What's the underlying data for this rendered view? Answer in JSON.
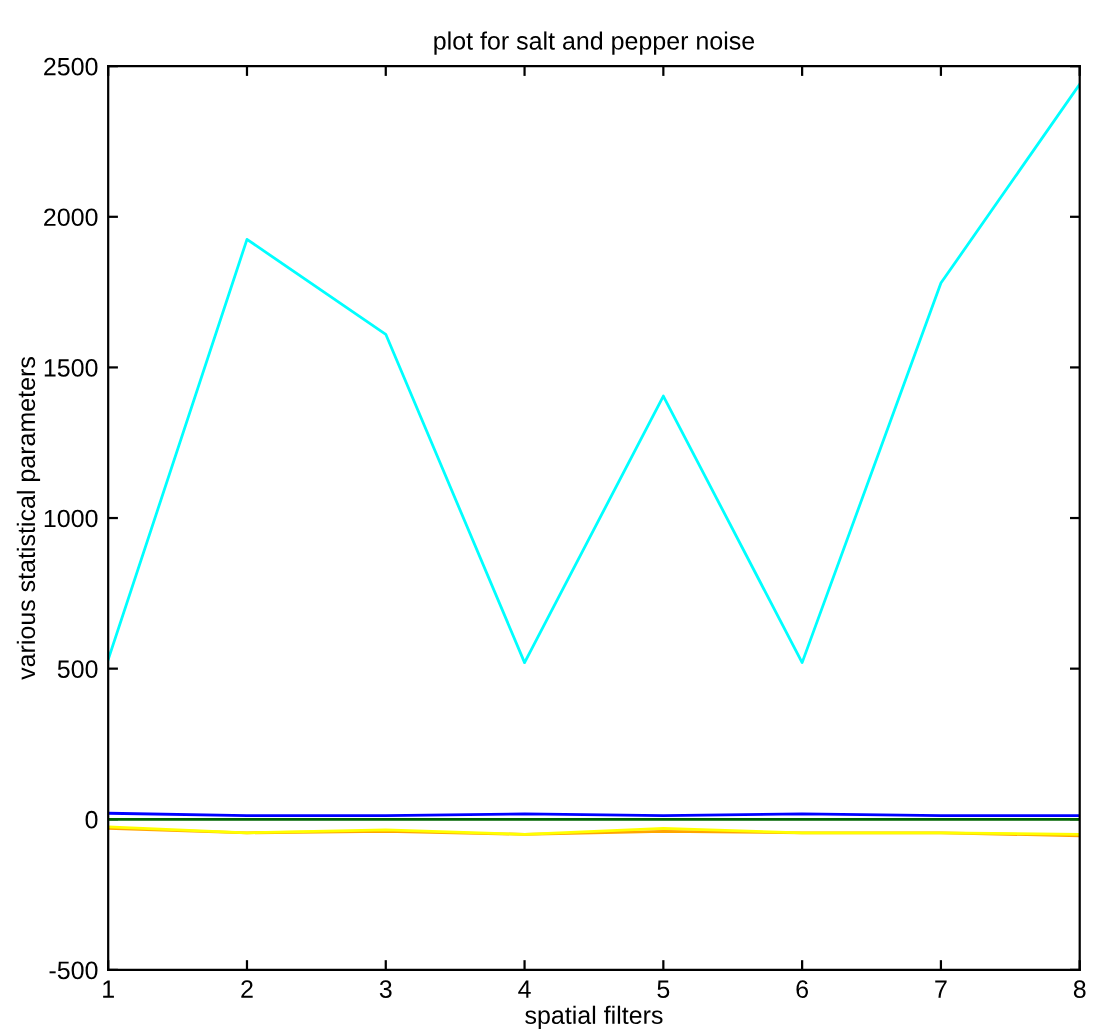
{
  "chart_data": {
    "type": "line",
    "title": "plot for salt and pepper noise",
    "xlabel": "spatial filters",
    "ylabel": "various statistical parameters",
    "x": [
      1,
      2,
      3,
      4,
      5,
      6,
      7,
      8
    ],
    "series": [
      {
        "color": "#00ffff",
        "values": [
          530,
          1925,
          1610,
          520,
          1405,
          520,
          1780,
          2440
        ]
      },
      {
        "color": "#0000ff",
        "values": [
          20,
          12,
          12,
          18,
          12,
          18,
          12,
          12
        ]
      },
      {
        "color": "#006400",
        "values": [
          0,
          0,
          0,
          0,
          0,
          0,
          0,
          0
        ]
      },
      {
        "color": "#ffa500",
        "values": [
          -30,
          -45,
          -40,
          -50,
          -40,
          -45,
          -45,
          -55
        ]
      },
      {
        "color": "#ffff00",
        "values": [
          -25,
          -45,
          -35,
          -50,
          -30,
          -45,
          -45,
          -50
        ]
      }
    ],
    "xlim": [
      1,
      8
    ],
    "xticks": [
      1,
      2,
      3,
      4,
      5,
      6,
      7,
      8
    ],
    "ylim": [
      -500,
      2500
    ],
    "yticks": [
      -500,
      0,
      500,
      1000,
      1500,
      2000,
      2500
    ],
    "grid": false,
    "legend": false,
    "marker": "none",
    "line_style": "solid"
  }
}
